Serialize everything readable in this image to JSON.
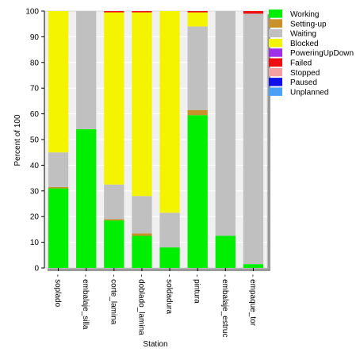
{
  "chart_data": {
    "type": "bar",
    "stacked": true,
    "title": "",
    "xlabel": "Station",
    "ylabel": "Percent of 100",
    "ylim": [
      0,
      100
    ],
    "yticks": [
      0,
      10,
      20,
      30,
      40,
      50,
      60,
      70,
      80,
      90,
      100
    ],
    "grid": true,
    "legend_position": "right",
    "categories": [
      "soplado",
      "embalaje_silla",
      "corte_lamina",
      "doblado_lamina",
      "soldadura",
      "pintura",
      "embalaje_estruc",
      "empaque_tor"
    ],
    "series": [
      {
        "name": "Working",
        "color": "#00ee00",
        "values": [
          31,
          54,
          18.5,
          12.5,
          8,
          59.5,
          12.5,
          1.5
        ]
      },
      {
        "name": "Setting-up",
        "color": "#c8912c",
        "values": [
          0.5,
          0,
          0.5,
          1,
          0,
          2,
          0,
          0
        ]
      },
      {
        "name": "Waiting",
        "color": "#c0c0c0",
        "values": [
          13.5,
          46,
          13.5,
          14.5,
          13.5,
          32.5,
          87.5,
          97.5
        ]
      },
      {
        "name": "Blocked",
        "color": "#f4f400",
        "values": [
          55,
          0,
          67,
          71.5,
          78.5,
          5.5,
          0,
          0
        ]
      },
      {
        "name": "PoweringUpDown",
        "color": "#a030e8",
        "values": [
          0,
          0,
          0,
          0,
          0,
          0,
          0,
          0
        ]
      },
      {
        "name": "Failed",
        "color": "#ee1010",
        "values": [
          0,
          0,
          0.5,
          0.5,
          0,
          0.5,
          0,
          1
        ]
      },
      {
        "name": "Stopped",
        "color": "#f4a0a0",
        "values": [
          0,
          0,
          0,
          0,
          0,
          0,
          0,
          0
        ]
      },
      {
        "name": "Paused",
        "color": "#1010e8",
        "values": [
          0,
          0,
          0,
          0,
          0,
          0,
          0,
          0
        ]
      },
      {
        "name": "Unplanned",
        "color": "#4aa0f4",
        "values": [
          0,
          0,
          0,
          0,
          0,
          0,
          0,
          0
        ]
      }
    ]
  }
}
